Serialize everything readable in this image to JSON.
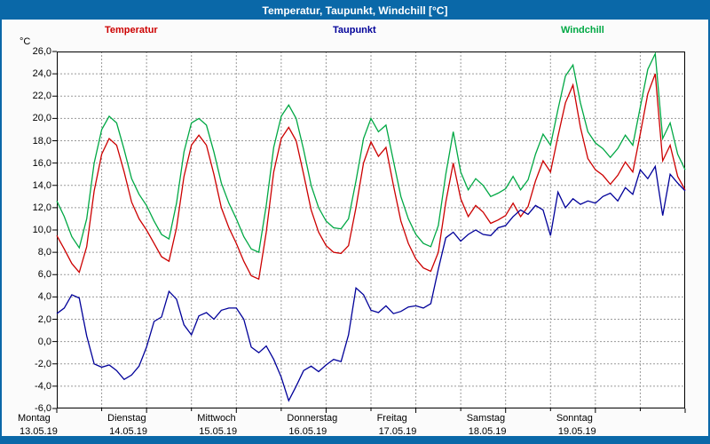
{
  "window": {
    "title": "Temperatur, Taupunkt, Windchill [°C]",
    "titlebar_color": "#0a68a8"
  },
  "legend": {
    "items": [
      {
        "label": "Temperatur",
        "color": "#cc0000"
      },
      {
        "label": "Taupunkt",
        "color": "#000099"
      },
      {
        "label": "Windchill",
        "color": "#00a844"
      }
    ]
  },
  "axes": {
    "y_unit": "°C",
    "y_max": 26,
    "y_min": -6,
    "y_step": 2,
    "y_tick_labels": [
      "26,0",
      "24,0",
      "22,0",
      "20,0",
      "18,0",
      "16,0",
      "14,0",
      "12,0",
      "10,0",
      "8,0",
      "6,0",
      "4,0",
      "2,0",
      "0,0",
      "-2,0",
      "-4,0",
      "-6,0"
    ],
    "x_day_labels": [
      {
        "name": "Montag",
        "date": "13.05.19"
      },
      {
        "name": "Dienstag",
        "date": "14.05.19"
      },
      {
        "name": "Mittwoch",
        "date": "15.05.19"
      },
      {
        "name": "Donnerstag",
        "date": "16.05.19"
      },
      {
        "name": "Freitag",
        "date": "17.05.19"
      },
      {
        "name": "Samstag",
        "date": "18.05.19"
      },
      {
        "name": "Sonntag",
        "date": "19.05.19"
      }
    ]
  },
  "chart_data": {
    "type": "line",
    "title": "Temperatur, Taupunkt, Windchill [°C]",
    "ylabel": "°C",
    "ylim": [
      -6,
      26
    ],
    "grid": "dashed gray; horizontal every 2°C, vertical every 12 h",
    "legend_position": "top",
    "x_hours_start": 0,
    "x_hours_end": 168,
    "x_step_hours": 2,
    "series": [
      {
        "name": "Temperatur",
        "color": "#cc0000",
        "values": [
          9.5,
          8.3,
          7.0,
          6.2,
          8.5,
          13.5,
          16.8,
          18.2,
          17.6,
          15.2,
          12.5,
          11.0,
          10.0,
          8.8,
          7.6,
          7.2,
          10.2,
          14.8,
          17.6,
          18.5,
          17.6,
          15.0,
          12.0,
          10.2,
          8.8,
          7.2,
          5.9,
          5.6,
          9.8,
          15.2,
          18.2,
          19.2,
          18.0,
          15.0,
          11.8,
          9.8,
          8.6,
          8.0,
          7.9,
          8.6,
          12.0,
          16.0,
          17.9,
          16.6,
          17.4,
          14.0,
          10.8,
          8.8,
          7.4,
          6.6,
          6.3,
          8.0,
          12.5,
          16.0,
          12.8,
          11.2,
          12.2,
          11.6,
          10.6,
          10.9,
          11.3,
          12.4,
          11.2,
          12.1,
          14.4,
          16.2,
          15.2,
          18.4,
          21.4,
          23.0,
          19.2,
          16.4,
          15.4,
          14.9,
          14.1,
          14.9,
          16.1,
          15.2,
          18.6,
          22.2,
          24.0,
          16.2,
          17.6,
          14.8,
          13.6
        ]
      },
      {
        "name": "Taupunkt",
        "color": "#000099",
        "values": [
          2.5,
          3.0,
          4.2,
          3.9,
          0.5,
          -2.0,
          -2.3,
          -2.1,
          -2.6,
          -3.4,
          -3.0,
          -2.2,
          -0.5,
          1.8,
          2.2,
          4.5,
          3.8,
          1.5,
          0.6,
          2.3,
          2.6,
          2.0,
          2.8,
          3.0,
          3.0,
          2.0,
          -0.5,
          -1.0,
          -0.4,
          -1.6,
          -3.2,
          -5.3,
          -4.0,
          -2.6,
          -2.2,
          -2.7,
          -2.1,
          -1.6,
          -1.8,
          0.6,
          4.8,
          4.2,
          2.8,
          2.6,
          3.2,
          2.5,
          2.7,
          3.1,
          3.2,
          3.0,
          3.4,
          6.5,
          9.3,
          9.8,
          9.0,
          9.6,
          10.0,
          9.6,
          9.5,
          10.2,
          10.4,
          11.2,
          11.8,
          11.4,
          12.2,
          11.8,
          9.5,
          13.4,
          12.0,
          12.8,
          12.3,
          12.6,
          12.4,
          13.0,
          13.3,
          12.6,
          13.8,
          13.2,
          15.4,
          14.6,
          15.7,
          11.3,
          15.0,
          14.2,
          13.5
        ]
      },
      {
        "name": "Windchill",
        "color": "#00a844",
        "values": [
          12.6,
          11.2,
          9.4,
          8.4,
          11.0,
          16.0,
          19.0,
          20.2,
          19.6,
          17.2,
          14.6,
          13.2,
          12.2,
          10.8,
          9.6,
          9.2,
          12.4,
          17.0,
          19.6,
          20.0,
          19.4,
          17.0,
          14.2,
          12.4,
          11.0,
          9.4,
          8.3,
          8.0,
          12.2,
          17.4,
          20.2,
          21.2,
          20.0,
          17.2,
          14.0,
          12.0,
          10.8,
          10.2,
          10.1,
          11.0,
          14.4,
          18.2,
          20.0,
          18.8,
          19.4,
          16.2,
          13.0,
          11.0,
          9.6,
          8.8,
          8.5,
          10.4,
          15.0,
          18.8,
          15.2,
          13.6,
          14.6,
          14.0,
          13.0,
          13.3,
          13.7,
          14.8,
          13.6,
          14.5,
          16.8,
          18.6,
          17.6,
          20.8,
          23.8,
          24.8,
          21.4,
          18.8,
          17.8,
          17.3,
          16.5,
          17.3,
          18.5,
          17.6,
          21.0,
          24.4,
          25.8,
          18.2,
          19.6,
          16.8,
          15.4
        ]
      }
    ]
  }
}
